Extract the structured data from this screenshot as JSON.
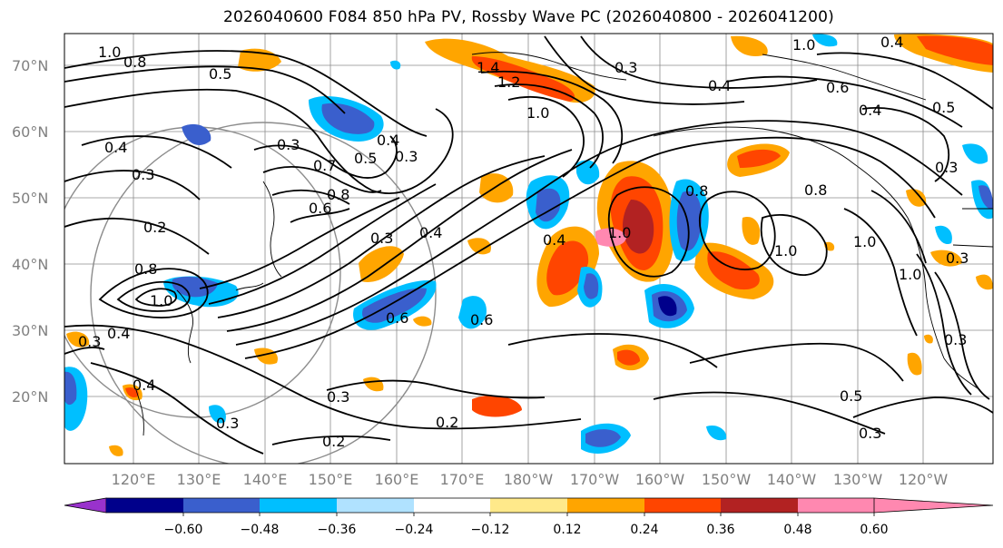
{
  "title": "2026040600 F084 850 hPa PV, Rossby Wave PC (2026040800 - 2026041200)",
  "map": {
    "lat_labels": [
      "70°N",
      "60°N",
      "50°N",
      "40°N",
      "30°N",
      "20°N"
    ],
    "lon_labels": [
      "120°E",
      "130°E",
      "140°E",
      "150°E",
      "160°E",
      "170°E",
      "180°W",
      "170°W",
      "160°W",
      "150°W",
      "140°W",
      "130°W",
      "120°W"
    ],
    "contour_labels": [
      "1.0",
      "0.8",
      "0.5",
      "0.4",
      "0.3",
      "1.4",
      "1.2",
      "0.3",
      "0.4",
      "0.6",
      "0.4",
      "0.5",
      "0.4",
      "0.3",
      "1.0",
      "0.3",
      "0.4",
      "0.7",
      "0.5",
      "0.3",
      "0.8",
      "0.6",
      "0.3",
      "0.4",
      "0.2",
      "0.8",
      "1.0",
      "0.4",
      "0.3",
      "1.0",
      "0.6",
      "0.6",
      "0.4",
      "1.0",
      "0.8",
      "1.0",
      "0.8",
      "1.0",
      "0.3",
      "1.0",
      "0.2",
      "0.3",
      "0.3",
      "0.2",
      "0.3",
      "0.5",
      "0.3",
      "0.4"
    ]
  },
  "colorbar": {
    "tick_labels": [
      "−0.60",
      "−0.48",
      "−0.36",
      "−0.24",
      "−0.12",
      "0.12",
      "0.24",
      "0.36",
      "0.48",
      "0.60"
    ],
    "colors": [
      "#9932cc",
      "#00008b",
      "#3a5fcd",
      "#00bfff",
      "#b0e2ff",
      "#ffffff",
      "#ffe98a",
      "#ffa500",
      "#ff4500",
      "#b22222",
      "#ff88b0"
    ]
  }
}
